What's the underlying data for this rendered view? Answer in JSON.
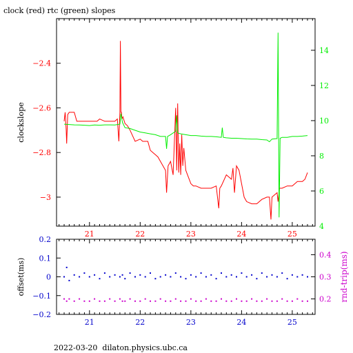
{
  "page_title": "clock (red) rtc (green) slopes",
  "footer": "2022-03-20  dilaton.physics.ubc.ca",
  "colors": {
    "clock": "#ff0000",
    "rtc": "#00ee00",
    "offset": "#0000cc",
    "roundtrip": "#cc00cc",
    "axis": "#000000"
  },
  "chart_data": [
    {
      "type": "line",
      "ylabel": "clockslope",
      "y2label": "",
      "xlim": [
        20.35,
        25.45
      ],
      "ylim": [
        -3.13,
        -2.2
      ],
      "y2lim": [
        4,
        15.8
      ],
      "xticks": [
        21,
        22,
        23,
        24,
        25
      ],
      "yticks": [
        -3,
        -2.8,
        -2.6,
        -2.4
      ],
      "y2ticks": [
        4,
        6,
        8,
        10,
        12,
        14
      ],
      "series": [
        {
          "name": "clock",
          "axis": "left",
          "x": [
            20.5,
            20.52,
            20.54,
            20.55,
            20.57,
            20.6,
            20.65,
            20.7,
            20.75,
            20.8,
            20.9,
            21.0,
            21.05,
            21.1,
            21.15,
            21.2,
            21.3,
            21.4,
            21.5,
            21.55,
            21.58,
            21.6,
            21.61,
            21.62,
            21.63,
            21.64,
            21.66,
            21.7,
            21.75,
            21.8,
            21.9,
            22.0,
            22.05,
            22.1,
            22.15,
            22.2,
            22.25,
            22.3,
            22.35,
            22.4,
            22.45,
            22.5,
            22.52,
            22.55,
            22.6,
            22.65,
            22.7,
            22.72,
            22.74,
            22.76,
            22.78,
            22.8,
            22.82,
            22.84,
            22.86,
            22.9,
            22.95,
            23.0,
            23.05,
            23.1,
            23.2,
            23.3,
            23.4,
            23.5,
            23.55,
            23.57,
            23.6,
            23.7,
            23.8,
            23.83,
            23.86,
            23.9,
            23.95,
            24.0,
            24.05,
            24.1,
            24.2,
            24.3,
            24.4,
            24.5,
            24.55,
            24.58,
            24.6,
            24.7,
            24.72,
            24.75,
            24.8,
            24.9,
            25.0,
            25.1,
            25.2,
            25.25,
            25.3
          ],
          "y": [
            -2.66,
            -2.62,
            -2.7,
            -2.76,
            -2.63,
            -2.62,
            -2.62,
            -2.62,
            -2.66,
            -2.66,
            -2.66,
            -2.66,
            -2.66,
            -2.66,
            -2.66,
            -2.65,
            -2.66,
            -2.66,
            -2.66,
            -2.65,
            -2.75,
            -2.62,
            -2.3,
            -2.62,
            -2.62,
            -2.65,
            -2.64,
            -2.67,
            -2.68,
            -2.7,
            -2.75,
            -2.74,
            -2.75,
            -2.75,
            -2.75,
            -2.79,
            -2.8,
            -2.81,
            -2.82,
            -2.84,
            -2.86,
            -2.88,
            -2.98,
            -2.86,
            -2.84,
            -2.9,
            -2.6,
            -2.88,
            -2.58,
            -2.89,
            -2.76,
            -2.9,
            -2.72,
            -2.86,
            -2.78,
            -2.88,
            -2.91,
            -2.94,
            -2.95,
            -2.95,
            -2.96,
            -2.96,
            -2.96,
            -2.95,
            -3.05,
            -2.96,
            -2.95,
            -2.9,
            -2.92,
            -2.87,
            -2.98,
            -2.86,
            -2.88,
            -2.94,
            -3.0,
            -3.02,
            -3.03,
            -3.03,
            -3.01,
            -3.0,
            -3.0,
            -3.1,
            -3.0,
            -2.98,
            -3.02,
            -2.96,
            -2.96,
            -2.95,
            -2.95,
            -2.93,
            -2.93,
            -2.92,
            -2.89
          ]
        },
        {
          "name": "rtc",
          "axis": "right",
          "x": [
            20.5,
            20.6,
            20.7,
            20.8,
            20.9,
            21.0,
            21.1,
            21.2,
            21.3,
            21.4,
            21.5,
            21.6,
            21.62,
            21.65,
            21.7,
            21.8,
            21.9,
            22.0,
            22.1,
            22.2,
            22.3,
            22.4,
            22.5,
            22.52,
            22.54,
            22.6,
            22.7,
            22.72,
            22.74,
            22.8,
            22.9,
            23.0,
            23.1,
            23.2,
            23.3,
            23.4,
            23.5,
            23.6,
            23.62,
            23.64,
            23.7,
            23.8,
            23.9,
            24.0,
            24.1,
            24.2,
            24.3,
            24.4,
            24.5,
            24.55,
            24.6,
            24.7,
            24.72,
            24.74,
            24.76,
            24.8,
            24.9,
            25.0,
            25.1,
            25.2,
            25.3
          ],
          "y": [
            9.8,
            9.78,
            9.76,
            9.75,
            9.74,
            9.72,
            9.75,
            9.74,
            9.76,
            9.76,
            9.75,
            9.8,
            10.4,
            9.9,
            9.6,
            9.55,
            9.45,
            9.35,
            9.3,
            9.25,
            9.2,
            9.1,
            9.1,
            8.4,
            9.1,
            9.2,
            9.4,
            10.3,
            9.3,
            9.25,
            9.2,
            9.15,
            9.15,
            9.12,
            9.1,
            9.1,
            9.08,
            9.05,
            9.6,
            9.05,
            9.02,
            9.0,
            9.0,
            8.98,
            8.96,
            8.95,
            8.95,
            8.92,
            8.9,
            8.8,
            8.95,
            8.98,
            15.0,
            4.5,
            9.0,
            9.05,
            9.05,
            9.1,
            9.1,
            9.12,
            9.15
          ]
        }
      ]
    },
    {
      "type": "scatter",
      "ylabel": "offset(ms)",
      "y2label": "rnd-trip(ms)",
      "xlim": [
        20.35,
        25.45
      ],
      "ylim": [
        -0.2,
        0.2
      ],
      "y2lim": [
        0.13,
        0.47
      ],
      "xticks": [
        21,
        22,
        23,
        24,
        25
      ],
      "yticks": [
        -0.2,
        -0.1,
        0,
        0.1,
        0.2
      ],
      "y2ticks": [
        0.2,
        0.3,
        0.4
      ],
      "series": [
        {
          "name": "offset",
          "axis": "left",
          "x": [
            20.5,
            20.55,
            20.6,
            20.7,
            20.8,
            20.9,
            21.0,
            21.1,
            21.2,
            21.3,
            21.4,
            21.5,
            21.6,
            21.65,
            21.7,
            21.8,
            21.9,
            22.0,
            22.1,
            22.2,
            22.3,
            22.4,
            22.5,
            22.6,
            22.7,
            22.8,
            22.9,
            23.0,
            23.1,
            23.2,
            23.3,
            23.4,
            23.5,
            23.6,
            23.7,
            23.8,
            23.9,
            24.0,
            24.1,
            24.2,
            24.3,
            24.4,
            24.5,
            24.6,
            24.7,
            24.8,
            24.9,
            25.0,
            25.1,
            25.2,
            25.3
          ],
          "y": [
            0.0,
            0.05,
            -0.02,
            0.01,
            0.0,
            0.02,
            0.0,
            0.01,
            -0.01,
            0.02,
            0.0,
            0.01,
            0.0,
            0.01,
            -0.01,
            0.02,
            0.0,
            0.01,
            0.0,
            0.02,
            -0.01,
            0.0,
            0.01,
            0.0,
            0.02,
            0.0,
            -0.01,
            0.01,
            0.0,
            0.02,
            0.0,
            0.01,
            -0.01,
            0.02,
            0.0,
            0.01,
            0.0,
            0.02,
            0.0,
            0.01,
            -0.01,
            0.02,
            0.0,
            0.01,
            0.0,
            0.02,
            -0.01,
            0.01,
            0.0,
            0.01,
            0.0
          ]
        },
        {
          "name": "roundtrip",
          "axis": "right",
          "x": [
            20.5,
            20.55,
            20.6,
            20.7,
            20.8,
            20.9,
            21.0,
            21.1,
            21.2,
            21.3,
            21.4,
            21.5,
            21.6,
            21.65,
            21.7,
            21.8,
            21.9,
            22.0,
            22.1,
            22.2,
            22.3,
            22.4,
            22.5,
            22.6,
            22.7,
            22.8,
            22.9,
            23.0,
            23.1,
            23.2,
            23.3,
            23.4,
            23.5,
            23.6,
            23.7,
            23.8,
            23.9,
            24.0,
            24.1,
            24.2,
            24.3,
            24.4,
            24.5,
            24.6,
            24.7,
            24.8,
            24.9,
            25.0,
            25.1,
            25.2,
            25.3
          ],
          "y": [
            0.2,
            0.19,
            0.2,
            0.19,
            0.2,
            0.19,
            0.19,
            0.2,
            0.19,
            0.19,
            0.2,
            0.19,
            0.2,
            0.19,
            0.19,
            0.2,
            0.19,
            0.19,
            0.2,
            0.19,
            0.19,
            0.2,
            0.19,
            0.19,
            0.2,
            0.19,
            0.19,
            0.2,
            0.19,
            0.19,
            0.2,
            0.19,
            0.19,
            0.2,
            0.19,
            0.19,
            0.2,
            0.19,
            0.19,
            0.2,
            0.19,
            0.19,
            0.2,
            0.19,
            0.19,
            0.2,
            0.19,
            0.19,
            0.2,
            0.19,
            0.19
          ]
        }
      ]
    }
  ]
}
